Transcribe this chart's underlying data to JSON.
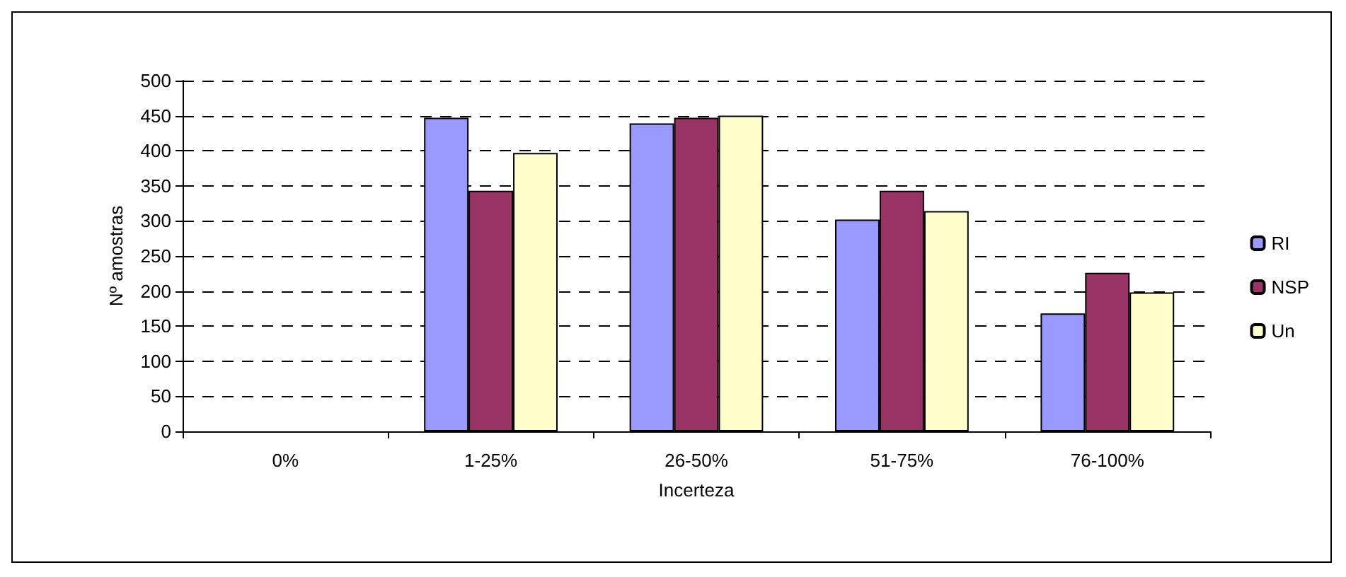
{
  "chart_data": {
    "type": "bar",
    "xlabel": "Incerteza",
    "ylabel": "Nº amostras",
    "categories": [
      "0%",
      "1-25%",
      "26-50%",
      "51-75%",
      "76-100%"
    ],
    "series": [
      {
        "name": "RI",
        "color": "#9999ff",
        "values": [
          0,
          447,
          439,
          302,
          168
        ]
      },
      {
        "name": "NSP",
        "color": "#993366",
        "values": [
          0,
          343,
          447,
          343,
          226
        ]
      },
      {
        "name": "Un",
        "color": "#ffffcc",
        "values": [
          0,
          397,
          450,
          314,
          198
        ]
      }
    ],
    "ylim": [
      0,
      500
    ],
    "yticks": [
      0,
      50,
      100,
      150,
      200,
      250,
      300,
      350,
      400,
      450,
      500
    ],
    "grid": "y",
    "legend": "right"
  }
}
